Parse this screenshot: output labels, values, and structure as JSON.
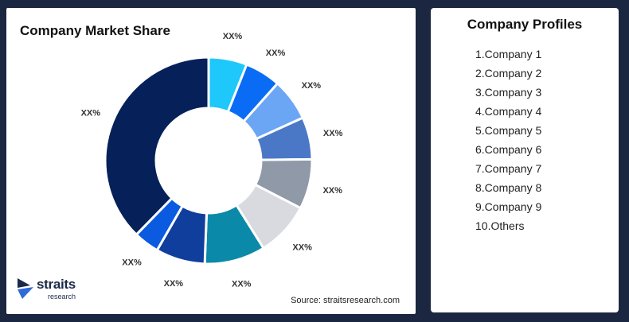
{
  "left_panel": {
    "title": "Company Market Share",
    "source": "Source: straitsresearch.com",
    "logo": {
      "word": "straits",
      "sub": "research"
    }
  },
  "right_panel": {
    "title": "Company Profiles",
    "items": [
      "1.Company 1",
      "2.Company 2",
      "3.Company 3",
      "4.Company 4",
      "5.Company 5",
      "6.Company 6",
      "7.Company 7",
      "8.Company 8",
      "9.Company 9",
      "10.Others"
    ]
  },
  "chart_data": {
    "type": "pie",
    "title": "Company Market Share",
    "slices": [
      {
        "label": "XX%",
        "value": 6,
        "color": "#1ec8fa"
      },
      {
        "label": "XX%",
        "value": 5.6,
        "color": "#0a6cf5"
      },
      {
        "label": "XX%",
        "value": 6.6,
        "color": "#6ba6f5"
      },
      {
        "label": "XX%",
        "value": 6.6,
        "color": "#4a78c6"
      },
      {
        "label": "XX%",
        "value": 7.8,
        "color": "#8f99a8"
      },
      {
        "label": "XX%",
        "value": 8.5,
        "color": "#d8dadf"
      },
      {
        "label": "XX%",
        "value": 9.5,
        "color": "#0a89a8"
      },
      {
        "label": "XX%",
        "value": 7.7,
        "color": "#0f3e9c"
      },
      {
        "label": "XX%",
        "value": 4,
        "color": "#0b5be0"
      },
      {
        "label": "XX%",
        "value": 37.7,
        "color": "#06205a"
      }
    ]
  }
}
